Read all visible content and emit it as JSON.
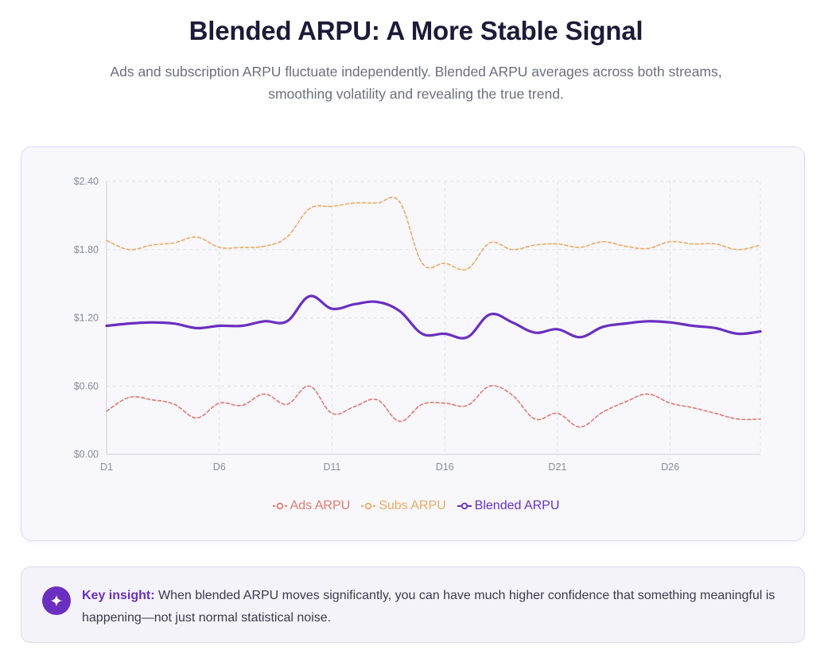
{
  "header": {
    "title": "Blended ARPU: A More Stable Signal",
    "subtitle": "Ads and subscription ARPU fluctuate independently. Blended ARPU averages across both streams, smoothing volatility and revealing the true trend."
  },
  "chart_data": {
    "type": "line",
    "title": "",
    "xlabel": "",
    "ylabel": "",
    "x": [
      "D1",
      "D2",
      "D3",
      "D4",
      "D5",
      "D6",
      "D7",
      "D8",
      "D9",
      "D10",
      "D11",
      "D12",
      "D13",
      "D14",
      "D15",
      "D16",
      "D17",
      "D18",
      "D19",
      "D20",
      "D21",
      "D22",
      "D23",
      "D24",
      "D25",
      "D26",
      "D27",
      "D28",
      "D29",
      "D30"
    ],
    "x_tick_labels": [
      "D1",
      "D6",
      "D11",
      "D16",
      "D21",
      "D26"
    ],
    "ylim": [
      0,
      2.4
    ],
    "y_ticks": [
      0,
      0.6,
      1.2,
      1.8,
      2.4
    ],
    "y_tick_labels": [
      "$0.00",
      "$0.60",
      "$1.20",
      "$1.80",
      "$2.40"
    ],
    "grid": true,
    "legend_position": "bottom-center",
    "series": [
      {
        "name": "Ads ARPU",
        "color": "#e07a6e",
        "style": "dashed",
        "values": [
          0.38,
          0.5,
          0.48,
          0.44,
          0.32,
          0.45,
          0.43,
          0.53,
          0.44,
          0.6,
          0.36,
          0.42,
          0.48,
          0.29,
          0.44,
          0.45,
          0.43,
          0.6,
          0.52,
          0.31,
          0.36,
          0.24,
          0.37,
          0.46,
          0.53,
          0.45,
          0.41,
          0.36,
          0.31,
          0.31
        ]
      },
      {
        "name": "Subs ARPU",
        "color": "#ebac62",
        "style": "dashed",
        "values": [
          1.88,
          1.8,
          1.84,
          1.86,
          1.91,
          1.82,
          1.82,
          1.83,
          1.91,
          2.16,
          2.18,
          2.21,
          2.21,
          2.22,
          1.68,
          1.68,
          1.63,
          1.86,
          1.8,
          1.84,
          1.85,
          1.82,
          1.87,
          1.83,
          1.81,
          1.87,
          1.85,
          1.85,
          1.8,
          1.84
        ]
      },
      {
        "name": "Blended ARPU",
        "color": "#6a2fc0",
        "style": "solid",
        "values": [
          1.13,
          1.15,
          1.16,
          1.15,
          1.11,
          1.13,
          1.13,
          1.17,
          1.17,
          1.39,
          1.28,
          1.32,
          1.34,
          1.26,
          1.06,
          1.06,
          1.03,
          1.23,
          1.16,
          1.07,
          1.1,
          1.03,
          1.12,
          1.15,
          1.17,
          1.16,
          1.13,
          1.11,
          1.06,
          1.08
        ]
      }
    ]
  },
  "insight": {
    "label": "Key insight:",
    "text": "When blended ARPU moves significantly, you can have much higher confidence that something meaningful is happening—not just normal statistical noise.",
    "icon": "sparkle-icon"
  }
}
